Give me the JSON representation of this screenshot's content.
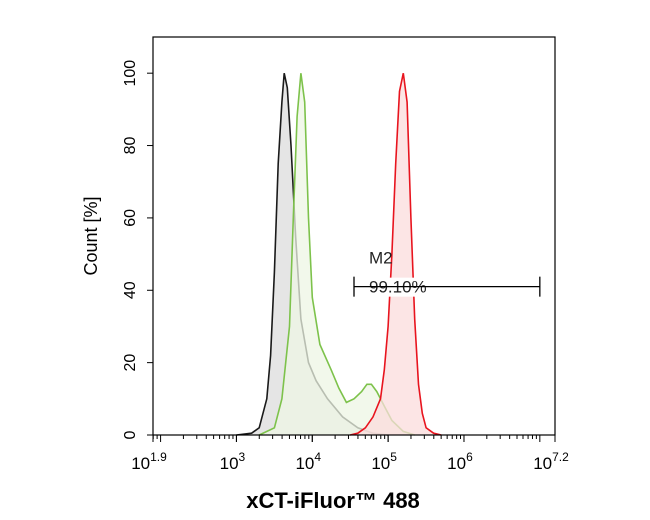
{
  "chart_data": {
    "type": "area",
    "xlabel": "xCT-iFluor™ 488",
    "ylabel": "Count [%]",
    "x_scale": "log10",
    "xlim": [
      1.9,
      7.2
    ],
    "ylim": [
      0,
      110
    ],
    "x_ticks": [
      {
        "value": 1.9,
        "base": "10",
        "exp": "1.9"
      },
      {
        "value": 3,
        "base": "10",
        "exp": "3"
      },
      {
        "value": 4,
        "base": "10",
        "exp": "4"
      },
      {
        "value": 5,
        "base": "10",
        "exp": "5"
      },
      {
        "value": 6,
        "base": "10",
        "exp": "6"
      },
      {
        "value": 7.2,
        "base": "10",
        "exp": "7.2"
      }
    ],
    "y_ticks": [
      "0",
      "20",
      "40",
      "60",
      "80",
      "100"
    ],
    "gate": {
      "name": "M2",
      "percent_label": "99.10%",
      "x_start": 4.55,
      "x_end": 7.0,
      "y": 41
    },
    "series": [
      {
        "color": "#1a1a1a",
        "fill": "#dcdcdc",
        "points": [
          [
            3.0,
            0
          ],
          [
            3.2,
            0.5
          ],
          [
            3.3,
            2
          ],
          [
            3.4,
            10
          ],
          [
            3.45,
            22
          ],
          [
            3.5,
            45
          ],
          [
            3.55,
            75
          ],
          [
            3.6,
            92
          ],
          [
            3.63,
            100
          ],
          [
            3.67,
            96
          ],
          [
            3.72,
            80
          ],
          [
            3.78,
            55
          ],
          [
            3.85,
            32
          ],
          [
            3.95,
            20
          ],
          [
            4.05,
            15
          ],
          [
            4.2,
            10
          ],
          [
            4.4,
            5
          ],
          [
            4.6,
            2
          ],
          [
            4.8,
            0.5
          ],
          [
            5.0,
            0
          ]
        ]
      },
      {
        "color": "#7dc24b",
        "fill": "#eef6e4",
        "points": [
          [
            3.3,
            0
          ],
          [
            3.5,
            2
          ],
          [
            3.6,
            10
          ],
          [
            3.7,
            30
          ],
          [
            3.75,
            60
          ],
          [
            3.8,
            88
          ],
          [
            3.85,
            100
          ],
          [
            3.9,
            92
          ],
          [
            3.95,
            60
          ],
          [
            4.0,
            38
          ],
          [
            4.1,
            25
          ],
          [
            4.25,
            18
          ],
          [
            4.35,
            13
          ],
          [
            4.45,
            9
          ],
          [
            4.55,
            10
          ],
          [
            4.65,
            12
          ],
          [
            4.72,
            14
          ],
          [
            4.78,
            14
          ],
          [
            4.85,
            12
          ],
          [
            4.95,
            8
          ],
          [
            5.05,
            4
          ],
          [
            5.2,
            1
          ],
          [
            5.35,
            0
          ]
        ]
      },
      {
        "color": "#e8141e",
        "fill": "#fbdcdc",
        "points": [
          [
            4.5,
            0
          ],
          [
            4.6,
            0.5
          ],
          [
            4.7,
            2
          ],
          [
            4.8,
            5
          ],
          [
            4.9,
            10
          ],
          [
            4.95,
            18
          ],
          [
            5.0,
            30
          ],
          [
            5.05,
            50
          ],
          [
            5.1,
            75
          ],
          [
            5.15,
            95
          ],
          [
            5.2,
            100
          ],
          [
            5.25,
            92
          ],
          [
            5.3,
            60
          ],
          [
            5.35,
            32
          ],
          [
            5.4,
            14
          ],
          [
            5.45,
            6
          ],
          [
            5.5,
            2
          ],
          [
            5.6,
            0.5
          ],
          [
            5.7,
            0
          ]
        ]
      }
    ]
  }
}
